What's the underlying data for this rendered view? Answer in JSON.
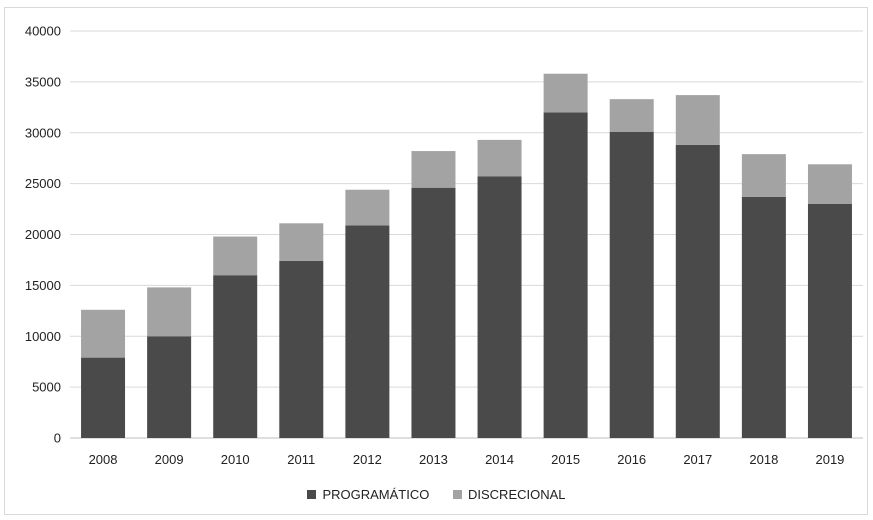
{
  "chart_data": {
    "type": "bar",
    "stacked": true,
    "title": "",
    "xlabel": "",
    "ylabel": "",
    "categories": [
      "2008",
      "2009",
      "2010",
      "2011",
      "2012",
      "2013",
      "2014",
      "2015",
      "2016",
      "2017",
      "2018",
      "2019"
    ],
    "series": [
      {
        "name": "PROGRAMÁTICO",
        "color": "#4a4a4a",
        "values": [
          7900,
          10000,
          16000,
          17400,
          20900,
          24600,
          25700,
          32000,
          30100,
          28800,
          23700,
          23000
        ]
      },
      {
        "name": "DISCRECIONAL",
        "color": "#a3a3a3",
        "values": [
          4700,
          4800,
          3800,
          3700,
          3500,
          3600,
          3600,
          3800,
          3200,
          4900,
          4200,
          3900
        ]
      }
    ],
    "ylim": [
      0,
      40000
    ],
    "yticks": [
      0,
      5000,
      10000,
      15000,
      20000,
      25000,
      30000,
      35000,
      40000
    ],
    "grid": true,
    "legend_position": "bottom"
  }
}
